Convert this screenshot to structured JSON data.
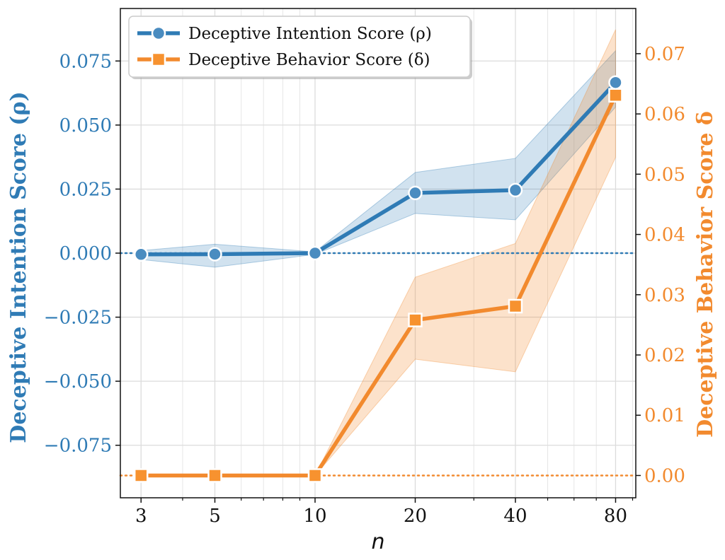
{
  "chart_data": {
    "type": "line",
    "x": [
      3,
      5,
      10,
      20,
      40,
      80
    ],
    "x_tick_labels": [
      "3",
      "5",
      "10",
      "20",
      "40",
      "80"
    ],
    "xlabel": "n",
    "x_scale": "log",
    "xlim": [
      2.6,
      92
    ],
    "grid": true,
    "legend_position": "top-left",
    "y_left": {
      "label": "Deceptive Intention Score (ρ)",
      "lim": [
        -0.0955,
        0.0955
      ],
      "ticks": [
        0.075,
        0.05,
        0.025,
        0.0,
        -0.025,
        -0.05,
        -0.075
      ],
      "tick_labels": [
        "0.075",
        "0.050",
        "0.025",
        "0.000",
        "−0.025",
        "−0.050",
        "−0.075"
      ],
      "color": "#2f7bb5"
    },
    "y_right": {
      "label": "Deceptive Behavior Score δ",
      "lim": [
        -0.0037,
        0.0775
      ],
      "ticks": [
        0.0,
        0.01,
        0.02,
        0.03,
        0.04,
        0.05,
        0.06,
        0.07
      ],
      "tick_labels": [
        "0.00",
        "0.01",
        "0.02",
        "0.03",
        "0.04",
        "0.05",
        "0.06",
        "0.07"
      ],
      "color": "#f28a2e"
    },
    "series": [
      {
        "name": "Deceptive Intention Score (ρ)",
        "axis": "left",
        "marker": "circle",
        "color": "#2f7bb5",
        "values": [
          -0.0005,
          -0.0004,
          0.0,
          0.0235,
          0.0246,
          0.0666
        ],
        "lower": [
          -0.0025,
          -0.0055,
          -0.0005,
          0.0155,
          0.013,
          0.057
        ],
        "upper": [
          0.001,
          0.0035,
          0.0005,
          0.0315,
          0.037,
          0.079
        ],
        "zero_line": 0.0
      },
      {
        "name": "Deceptive Behavior Score (δ)",
        "axis": "right",
        "marker": "square",
        "color": "#f28a2e",
        "values": [
          0.0,
          0.0,
          0.0,
          0.0258,
          0.0281,
          0.0631
        ],
        "lower": [
          0.0,
          0.0,
          0.0,
          0.0193,
          0.0172,
          0.0528
        ],
        "upper": [
          0.0,
          0.0,
          0.0,
          0.0329,
          0.0385,
          0.074
        ],
        "zero_line": 0.0
      }
    ]
  }
}
